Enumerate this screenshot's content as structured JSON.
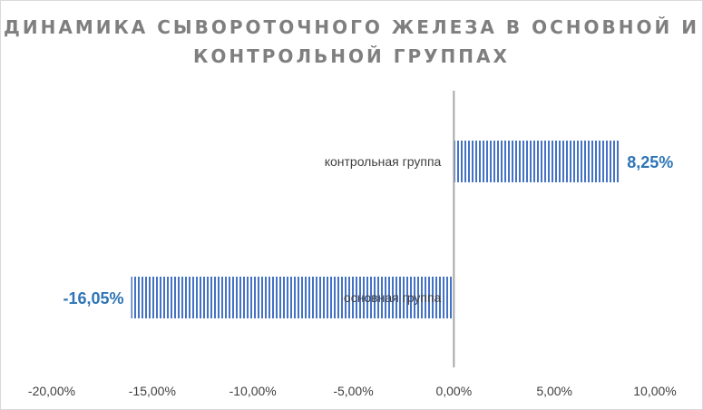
{
  "chart_data": {
    "type": "bar",
    "orientation": "horizontal",
    "title": "ДИНАМИКА СЫВОРОТОЧНОГО ЖЕЛЕЗА В ОСНОВНОЙ И КОНТРОЛЬНОЙ ГРУППАХ",
    "categories": [
      "контрольная группа",
      "основная группа"
    ],
    "values": [
      8.25,
      -16.05
    ],
    "data_labels": [
      "8,25%",
      "-16,05%"
    ],
    "xlim": [
      -20,
      10
    ],
    "x_ticks": [
      -20,
      -15,
      -10,
      -5,
      0,
      5,
      10
    ],
    "x_tick_labels": [
      "-20,00%",
      "-15,00%",
      "-10,00%",
      "-5,00%",
      "0,00%",
      "5,00%",
      "10,00%"
    ],
    "xlabel": "",
    "ylabel": "",
    "grid": false,
    "legend": "none",
    "bar_color": "#4472c4",
    "bar_pattern": "vertical-stripes",
    "label_color": "#2e75b6",
    "axis_color": "#a6a6a6",
    "title_color": "#7f7f7f"
  }
}
